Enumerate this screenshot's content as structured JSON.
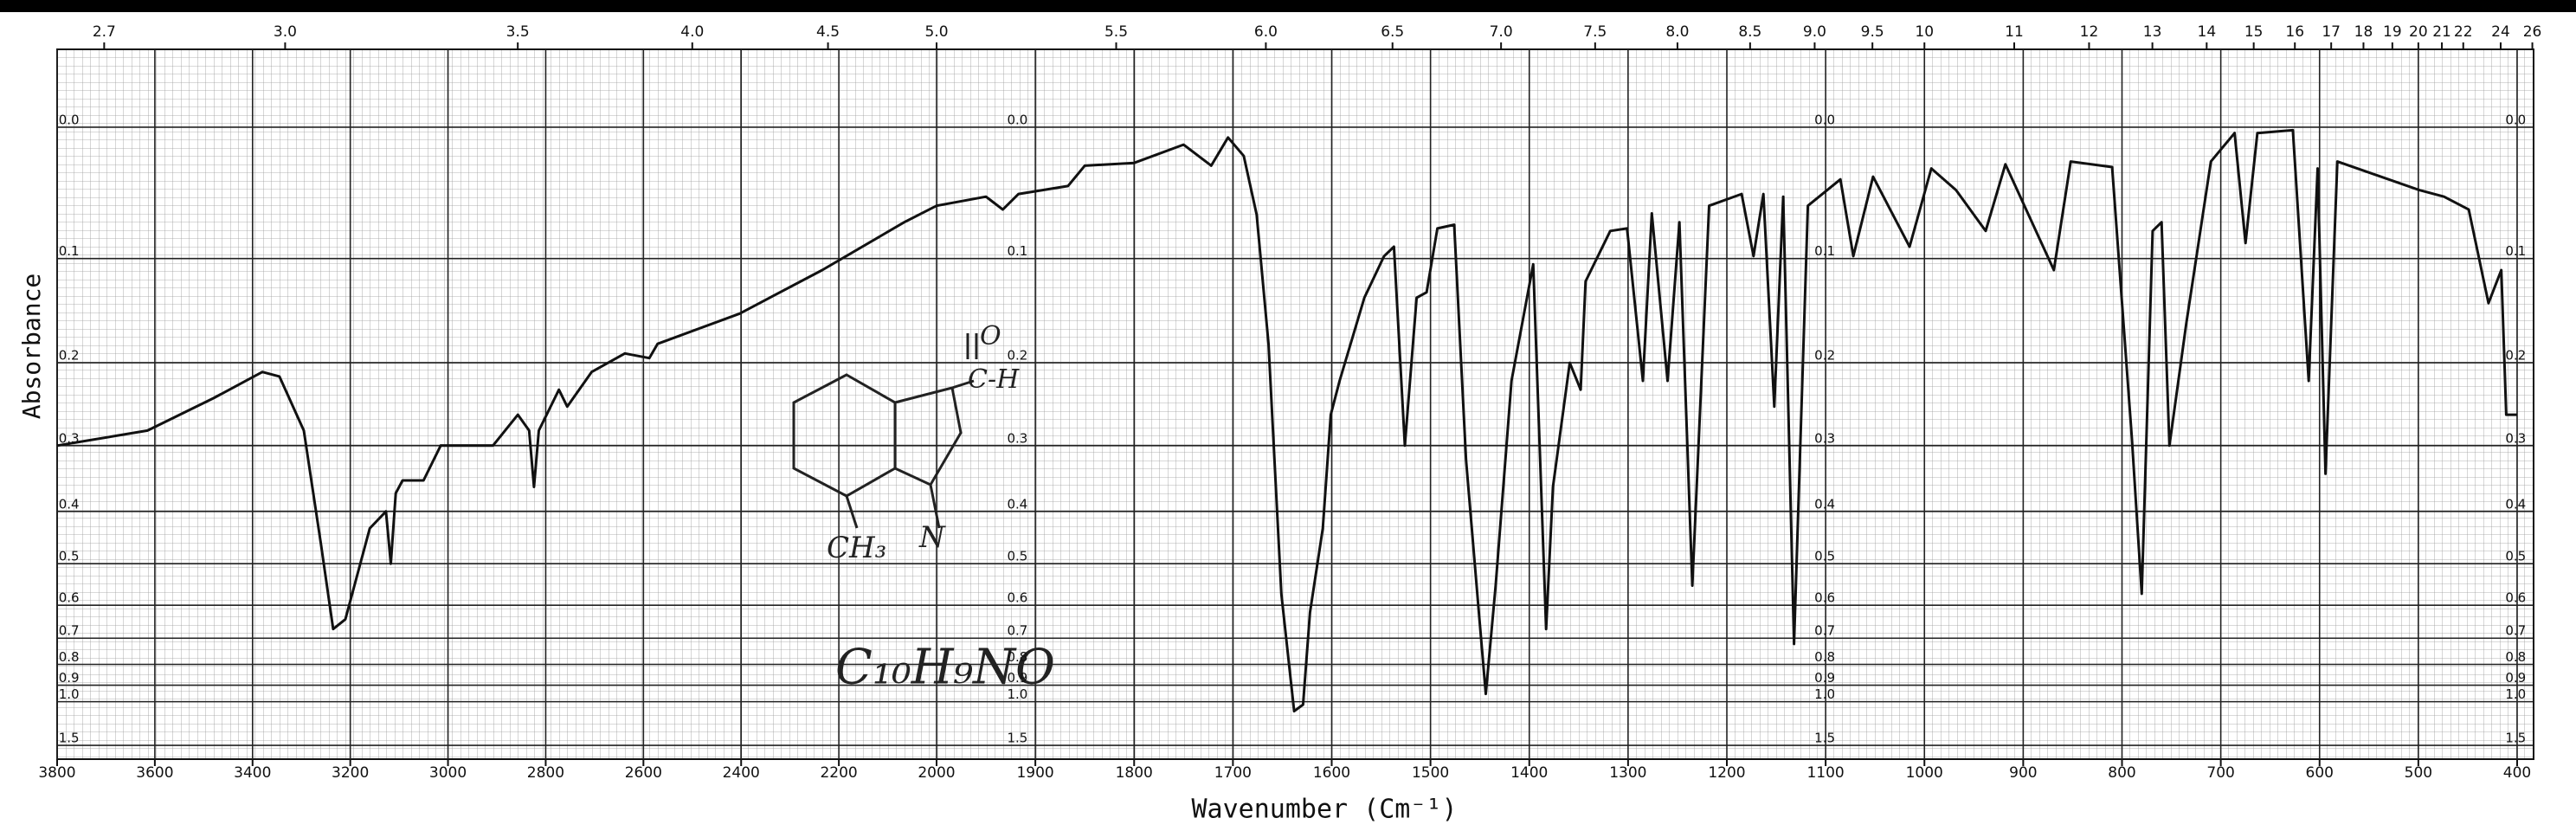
{
  "chart_data": {
    "type": "line",
    "xlabel": "Wavenumber (Cm⁻¹)",
    "ylabel": "Absorbance",
    "annotations": [
      "O",
      "C-H",
      "CH₃",
      "N",
      "C₁₀H₉NO"
    ],
    "color": "#111111",
    "xlim": [
      3800,
      400
    ],
    "x_scale_change": 2000,
    "xticks": [
      3800,
      3600,
      3400,
      3200,
      3000,
      2800,
      2600,
      2400,
      2200,
      2000,
      1900,
      1800,
      1700,
      1600,
      1500,
      1400,
      1300,
      1200,
      1100,
      1000,
      900,
      800,
      700,
      600,
      500,
      400
    ],
    "x2label_unit": "micron",
    "x2ticks": [
      2.7,
      {
        "value": 3,
        "label": "3.0"
      },
      3.5,
      {
        "value": 4,
        "label": "4.0"
      },
      4.5,
      {
        "value": 5,
        "label": "5.0"
      },
      5.5,
      {
        "value": 6,
        "label": "6.0"
      },
      6.5,
      {
        "value": 7,
        "label": "7.0"
      },
      7.5,
      {
        "value": 8,
        "label": "8.0"
      },
      8.5,
      {
        "value": 9,
        "label": "9.0"
      },
      9.5,
      10,
      11,
      12,
      13,
      14,
      15,
      16,
      17,
      18,
      19,
      20,
      21,
      22,
      24,
      26
    ],
    "yscale": "transmittance",
    "ylim": [
      -0.05,
      2
    ],
    "yticks": [
      {
        "value": 0,
        "label": "0.0"
      },
      0.1,
      0.2,
      0.3,
      0.4,
      0.5,
      0.6,
      0.7,
      0.8,
      0.9,
      {
        "value": 1,
        "label": "1.0"
      },
      1.5
    ],
    "grid": true,
    "x": [
      3800,
      3615,
      3480,
      3380,
      3345,
      3295,
      3260,
      3235,
      3210,
      3160,
      3127,
      3117,
      3107,
      3093,
      3050,
      3015,
      2975,
      2941,
      2908,
      2857,
      2834,
      2824,
      2814,
      2773,
      2756,
      2706,
      2638,
      2588,
      2571,
      2403,
      2234,
      2066,
      2000,
      1950,
      1933,
      1917,
      1867,
      1850,
      1800,
      1750,
      1722,
      1705,
      1689,
      1676,
      1664,
      1651,
      1638,
      1629,
      1622,
      1609,
      1601,
      1592,
      1567,
      1547,
      1537,
      1526,
      1514,
      1504,
      1493,
      1476,
      1464,
      1451,
      1444,
      1434,
      1418,
      1396,
      1388,
      1383,
      1376,
      1359,
      1348,
      1343,
      1318,
      1301,
      1285,
      1276,
      1260,
      1248,
      1235,
      1218,
      1185,
      1173,
      1163,
      1152,
      1143,
      1132,
      1118,
      1085,
      1072,
      1052,
      1015,
      993,
      968,
      938,
      918,
      869,
      852,
      810,
      790,
      780,
      769,
      760,
      752,
      735,
      710,
      686,
      675,
      663,
      627,
      611,
      602,
      594,
      582,
      499,
      474,
      449,
      429,
      416,
      411,
      400
    ],
    "values": [
      0.3,
      0.28,
      0.24,
      0.21,
      0.215,
      0.28,
      0.46,
      0.67,
      0.64,
      0.43,
      0.4,
      0.5,
      0.37,
      0.35,
      0.35,
      0.3,
      0.3,
      0.3,
      0.3,
      0.26,
      0.28,
      0.36,
      0.28,
      0.23,
      0.25,
      0.21,
      0.19,
      0.195,
      0.18,
      0.15,
      0.11,
      0.07,
      0.057,
      0.05,
      0.06,
      0.048,
      0.042,
      0.027,
      0.025,
      0.012,
      0.027,
      0.007,
      0.02,
      0.064,
      0.18,
      0.57,
      1.07,
      1.02,
      0.62,
      0.43,
      0.26,
      0.22,
      0.135,
      0.098,
      0.09,
      0.3,
      0.135,
      0.13,
      0.075,
      0.072,
      0.32,
      0.62,
      0.95,
      0.55,
      0.22,
      0.105,
      0.36,
      0.67,
      0.36,
      0.2,
      0.23,
      0.12,
      0.077,
      0.075,
      0.22,
      0.063,
      0.22,
      0.07,
      0.55,
      0.057,
      0.048,
      0.098,
      0.048,
      0.25,
      0.05,
      0.72,
      0.057,
      0.037,
      0.098,
      0.035,
      0.09,
      0.029,
      0.045,
      0.077,
      0.026,
      0.11,
      0.024,
      0.028,
      0.29,
      0.57,
      0.077,
      0.07,
      0.3,
      0.16,
      0.024,
      0.004,
      0.087,
      0.004,
      0.002,
      0.22,
      0.029,
      0.34,
      0.024,
      0.045,
      0.05,
      0.06,
      0.14,
      0.11,
      0.26,
      0.26
    ]
  }
}
